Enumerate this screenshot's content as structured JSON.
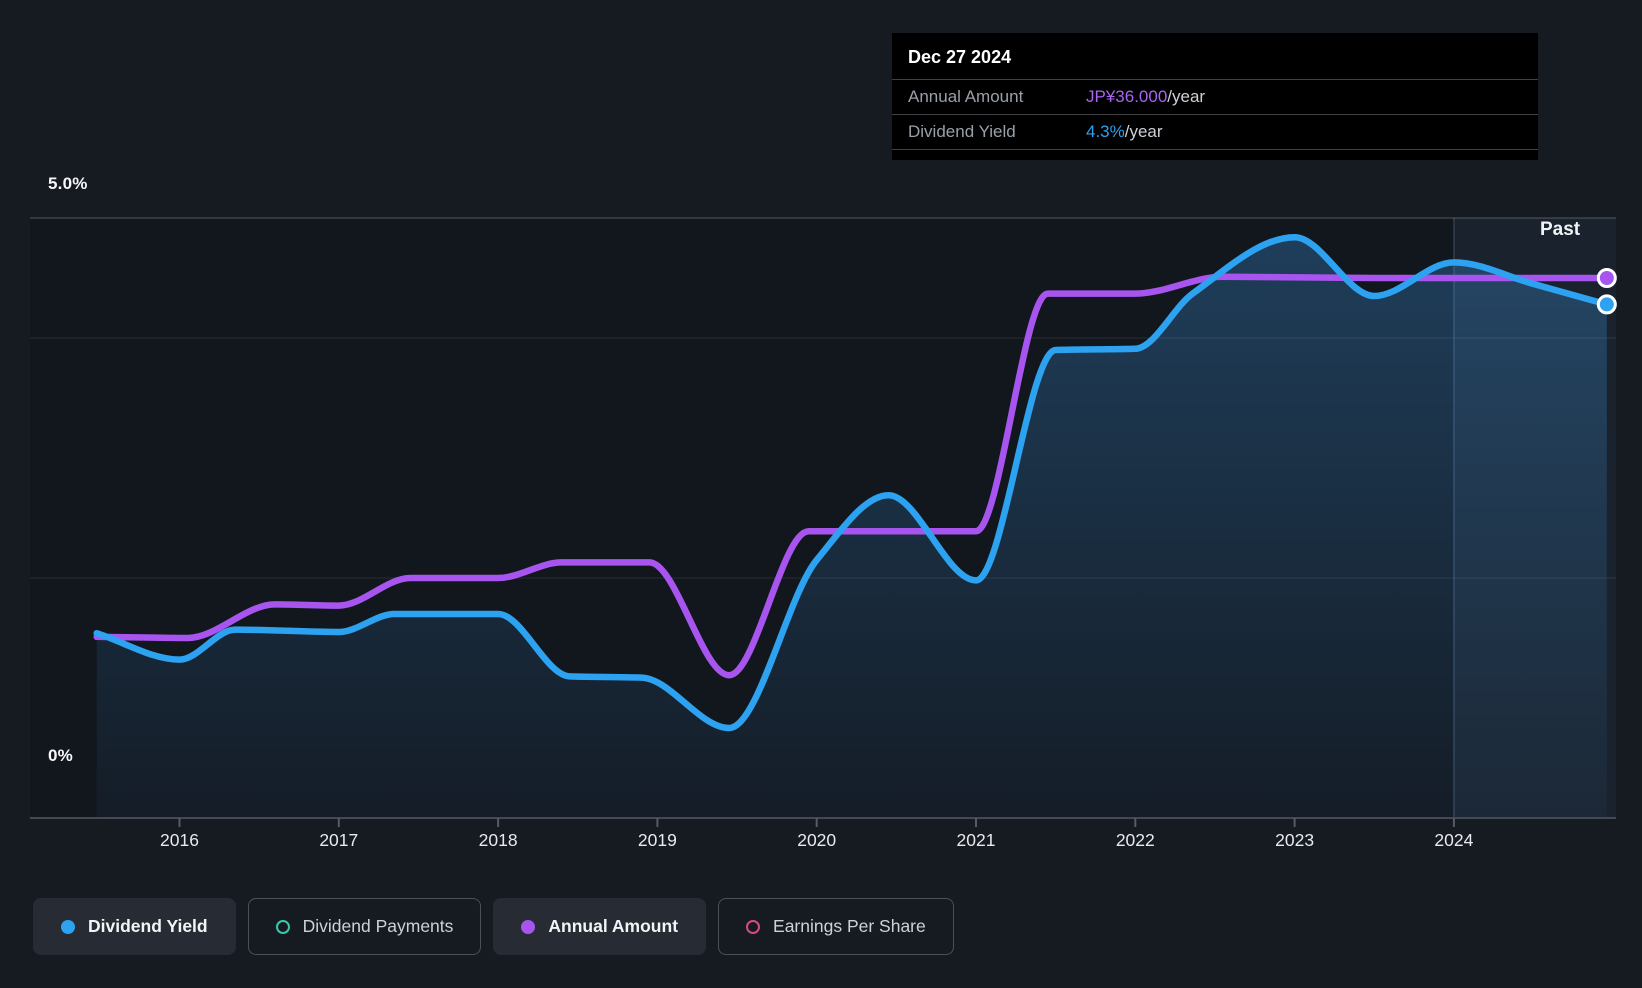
{
  "tooltip": {
    "date": "Dec 27 2024",
    "rows": [
      {
        "label": "Annual Amount",
        "value": "JP¥36.000",
        "suffix": "/year",
        "color": "#a765f0"
      },
      {
        "label": "Dividend Yield",
        "value": "4.3%",
        "suffix": "/year",
        "color": "#2da2f0"
      }
    ]
  },
  "axis": {
    "y_top_label": "5.0%",
    "y_bottom_label": "0%",
    "x_ticks": [
      "2016",
      "2017",
      "2018",
      "2019",
      "2020",
      "2021",
      "2022",
      "2023",
      "2024"
    ],
    "past_label": "Past"
  },
  "legend": [
    {
      "label": "Dividend Yield",
      "color": "#2da2f0",
      "active": true,
      "icon": "filled-dot"
    },
    {
      "label": "Dividend Payments",
      "color": "#37c8b2",
      "active": false,
      "icon": "ring-dot"
    },
    {
      "label": "Annual Amount",
      "color": "#a755ee",
      "active": true,
      "icon": "filled-dot"
    },
    {
      "label": "Earnings Per Share",
      "color": "#d9488a",
      "active": false,
      "icon": "ring-dot"
    }
  ],
  "chart_data": {
    "type": "line",
    "title": "Dividend yield and payment history",
    "x_range": [
      2015.48,
      2024.96
    ],
    "y_range_pct": [
      0,
      5
    ],
    "x_ticks": [
      2016,
      2017,
      2018,
      2019,
      2020,
      2021,
      2022,
      2023,
      2024
    ],
    "gridlines_pct": [
      5.0,
      4.0,
      2.0
    ],
    "baseline_pct": 0,
    "past_start_year": 2024.0,
    "legend_position": "bottom",
    "series": [
      {
        "name": "Dividend Yield",
        "unit": "%",
        "color": "#2da2f0",
        "end_value_label": "4.3%/year",
        "end_point": [
          2024.96,
          4.28
        ],
        "points": [
          [
            2015.48,
            1.54
          ],
          [
            2016.0,
            1.32
          ],
          [
            2016.35,
            1.57
          ],
          [
            2017.0,
            1.55
          ],
          [
            2017.35,
            1.7
          ],
          [
            2018.0,
            1.7
          ],
          [
            2018.45,
            1.18
          ],
          [
            2018.9,
            1.17
          ],
          [
            2019.45,
            0.75
          ],
          [
            2020.0,
            2.15
          ],
          [
            2020.45,
            2.69
          ],
          [
            2021.0,
            1.98
          ],
          [
            2021.5,
            3.9
          ],
          [
            2022.0,
            3.91
          ],
          [
            2022.36,
            4.37
          ],
          [
            2023.0,
            4.84
          ],
          [
            2023.5,
            4.35
          ],
          [
            2024.0,
            4.63
          ],
          [
            2024.5,
            4.45
          ],
          [
            2024.96,
            4.28
          ]
        ]
      },
      {
        "name": "Annual Amount",
        "unit": "left-axis-pct-equivalent",
        "color": "#a755ee",
        "end_value_label": "JP¥36.000/year",
        "end_point": [
          2024.96,
          4.5
        ],
        "points": [
          [
            2015.48,
            1.51
          ],
          [
            2016.05,
            1.5
          ],
          [
            2016.6,
            1.78
          ],
          [
            2017.0,
            1.77
          ],
          [
            2017.45,
            2.0
          ],
          [
            2018.0,
            2.0
          ],
          [
            2018.4,
            2.13
          ],
          [
            2018.95,
            2.13
          ],
          [
            2019.45,
            1.19
          ],
          [
            2019.95,
            2.39
          ],
          [
            2021.0,
            2.39
          ],
          [
            2021.45,
            4.37
          ],
          [
            2022.0,
            4.37
          ],
          [
            2022.55,
            4.51
          ],
          [
            2023.5,
            4.5
          ],
          [
            2024.96,
            4.5
          ]
        ]
      }
    ]
  }
}
